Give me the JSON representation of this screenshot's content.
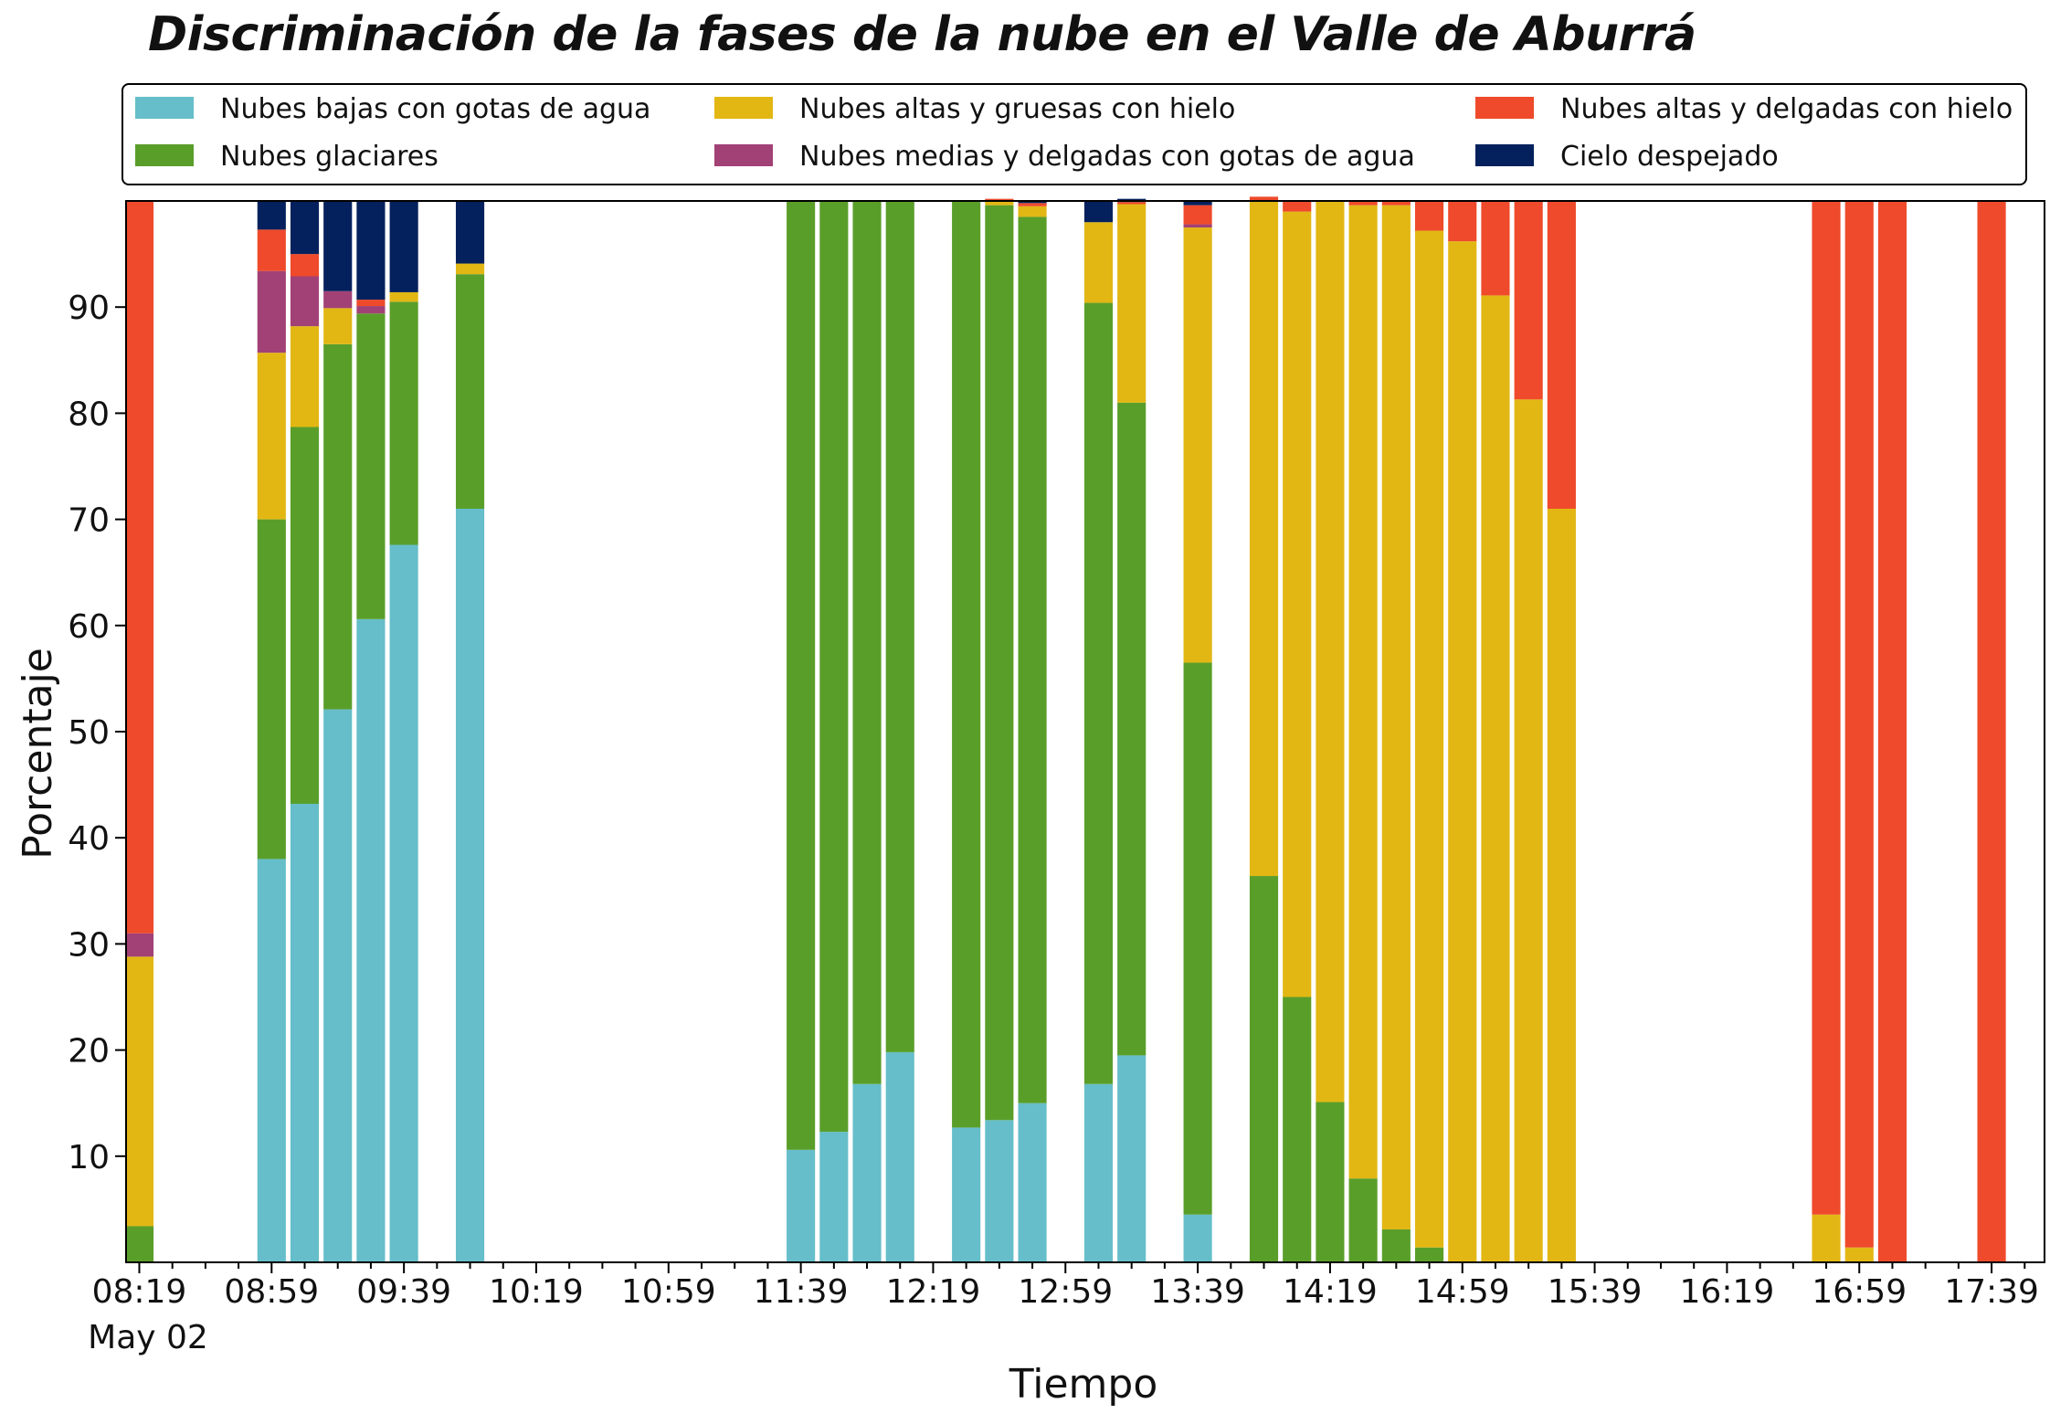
{
  "chart_data": {
    "type": "bar",
    "stacked": true,
    "title": "Discriminación de la fases de la nube en el Valle de Aburrá",
    "xlabel": "Tiempo",
    "ylabel": "Porcentaje",
    "date_label": "May 02",
    "ylim": [
      0,
      100
    ],
    "yticks": [
      10,
      20,
      30,
      40,
      50,
      60,
      70,
      80,
      90
    ],
    "xlim": [
      "08:15",
      "17:55"
    ],
    "xticks": [
      "08:19",
      "08:59",
      "09:39",
      "10:19",
      "10:59",
      "11:39",
      "12:19",
      "12:59",
      "13:39",
      "14:19",
      "14:59",
      "15:39",
      "16:19",
      "16:59",
      "17:39"
    ],
    "bar_interval_minutes": 10,
    "legend_position": "top",
    "grid": false,
    "times": [
      "08:19",
      "08:59",
      "09:09",
      "09:19",
      "09:29",
      "09:39",
      "09:59",
      "11:39",
      "11:49",
      "11:59",
      "12:09",
      "12:29",
      "12:39",
      "12:49",
      "13:09",
      "13:19",
      "13:39",
      "13:59",
      "14:09",
      "14:19",
      "14:29",
      "14:39",
      "14:49",
      "14:59",
      "15:09",
      "15:19",
      "15:29",
      "16:49",
      "16:59",
      "17:09",
      "17:39"
    ],
    "series": [
      {
        "name": "Nubes bajas con gotas de agua",
        "color": "#65BEC9",
        "values": [
          0,
          38,
          43.2,
          52.1,
          60.6,
          67.6,
          71,
          10.6,
          12.3,
          16.8,
          19.8,
          12.7,
          13.4,
          15,
          16.8,
          19.5,
          4.5,
          0,
          0,
          0,
          0,
          0,
          0,
          0,
          0,
          0,
          0,
          0,
          0,
          0,
          0
        ]
      },
      {
        "name": "Nubes glaciares",
        "color": "#5A9E2A",
        "values": [
          3.4,
          32,
          35.5,
          34.4,
          28.8,
          22.9,
          22.1,
          89.4,
          87.7,
          83.2,
          80.2,
          87.3,
          86.2,
          83.5,
          73.6,
          61.5,
          52,
          36.4,
          25,
          15.1,
          7.9,
          3.1,
          1.4,
          0,
          0,
          0,
          0,
          0,
          0,
          0,
          0
        ]
      },
      {
        "name": "Nubes altas y gruesas con hielo",
        "color": "#E2B714",
        "values": [
          25.4,
          15.7,
          9.5,
          3.4,
          0,
          0.9,
          1,
          0,
          0,
          0,
          0,
          0,
          0.4,
          1,
          7.6,
          18.7,
          41,
          63.6,
          74,
          84.9,
          91.7,
          96.5,
          95.8,
          96.2,
          91.1,
          81.3,
          71,
          4.5,
          1.4,
          0,
          0
        ]
      },
      {
        "name": "Nubes medias y delgadas con gotas de agua",
        "color": "#A24176",
        "values": [
          2.2,
          7.7,
          4.7,
          1.6,
          0.7,
          0,
          0,
          0,
          0,
          0,
          0,
          0,
          0,
          0,
          0,
          0,
          0.3,
          0,
          0,
          0,
          0,
          0,
          0,
          0,
          0,
          0,
          0,
          0,
          0,
          0,
          0
        ]
      },
      {
        "name": "Nubes altas y delgadas con hielo",
        "color": "#EE4A2B",
        "values": [
          69,
          3.9,
          2.1,
          0,
          0.6,
          0,
          0,
          0,
          0,
          0,
          0,
          0,
          0.2,
          0.3,
          0,
          0.2,
          1.8,
          0.4,
          1,
          0,
          0.4,
          0.4,
          2.8,
          3.8,
          8.9,
          18.7,
          29,
          95.5,
          98.6,
          100,
          100
        ]
      },
      {
        "name": "Cielo despejado",
        "color": "#04215D",
        "values": [
          0,
          2.7,
          5,
          8.5,
          9.3,
          8.6,
          5.9,
          0,
          0,
          0,
          0,
          0,
          0,
          0.2,
          2,
          0.3,
          0.4,
          0,
          0,
          0,
          0,
          0,
          0,
          0,
          0,
          0,
          0,
          0,
          0,
          0,
          0
        ]
      }
    ]
  }
}
